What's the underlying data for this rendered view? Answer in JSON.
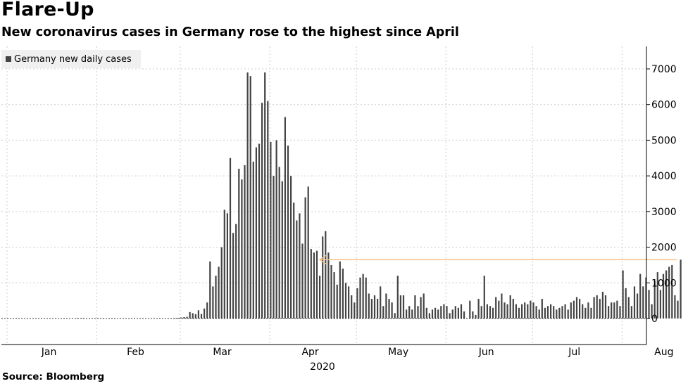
{
  "title": "Flare-Up",
  "subtitle": "New coronavirus cases in Germany rose to the highest since April",
  "legend_label": "Germany new daily cases",
  "source": "Source: Bloomberg",
  "year_label": "2020",
  "colors": {
    "bar": "#444444",
    "arrow": "#f5c28a",
    "grid": "#cccccc"
  },
  "chart_data": {
    "type": "bar",
    "title": "Flare-Up",
    "subtitle": "New coronavirus cases in Germany rose to the highest since April",
    "xlabel": "2020",
    "ylabel": "",
    "ylim": [
      -600,
      7500
    ],
    "y_ticks": [
      0,
      1000,
      2000,
      3000,
      4000,
      5000,
      6000,
      7000
    ],
    "x_tick_labels": [
      "Jan",
      "Feb",
      "Mar",
      "Apr",
      "May",
      "Jun",
      "Jul",
      "Aug"
    ],
    "start_date": "2020-01-01",
    "axis_side": "right",
    "grid": true,
    "legend": "top-left",
    "annotation": "arrow at ~1,650 cases pointing back to mid-April",
    "series": [
      {
        "name": "Germany new daily cases",
        "values": [
          0,
          0,
          0,
          0,
          0,
          0,
          0,
          0,
          0,
          0,
          0,
          0,
          0,
          0,
          0,
          0,
          0,
          0,
          0,
          0,
          0,
          0,
          0,
          0,
          0,
          0,
          1,
          0,
          1,
          0,
          0,
          0,
          0,
          1,
          0,
          1,
          0,
          0,
          0,
          1,
          0,
          0,
          0,
          0,
          0,
          0,
          0,
          0,
          0,
          0,
          0,
          0,
          0,
          0,
          0,
          0,
          0,
          0,
          0,
          0,
          10,
          20,
          30,
          40,
          50,
          180,
          150,
          120,
          230,
          130,
          280,
          450,
          1600,
          900,
          1200,
          1450,
          2000,
          3050,
          2950,
          4500,
          2400,
          2650,
          4200,
          3900,
          4300,
          6900,
          6800,
          4400,
          4800,
          4900,
          6050,
          6900,
          6100,
          4950,
          4000,
          5000,
          4250,
          3850,
          5650,
          4850,
          4000,
          3250,
          2750,
          2950,
          2100,
          3400,
          3700,
          1950,
          1850,
          1900,
          1200,
          2300,
          2450,
          1850,
          1500,
          1300,
          950,
          1600,
          1400,
          1000,
          900,
          650,
          450,
          850,
          1150,
          1250,
          1150,
          700,
          550,
          650,
          550,
          900,
          350,
          700,
          550,
          450,
          150,
          1200,
          650,
          650,
          250,
          350,
          250,
          650,
          350,
          600,
          700,
          300,
          150,
          250,
          300,
          250,
          350,
          400,
          350,
          150,
          250,
          350,
          300,
          400,
          200,
          0,
          500,
          200,
          100,
          550,
          350,
          1200,
          400,
          350,
          300,
          600,
          500,
          700,
          450,
          400,
          650,
          550,
          400,
          300,
          400,
          450,
          400,
          500,
          450,
          350,
          250,
          550,
          300,
          350,
          400,
          350,
          250,
          300,
          350,
          400,
          250,
          450,
          500,
          600,
          550,
          400,
          300,
          450,
          300,
          600,
          650,
          550,
          750,
          650,
          350,
          450,
          450,
          500,
          350,
          1350,
          850,
          600,
          350,
          900,
          700,
          1250,
          900,
          1150,
          800,
          400,
          1050,
          1300,
          800,
          1250,
          1350,
          1450,
          1500,
          650,
          500,
          1650
        ]
      }
    ]
  }
}
